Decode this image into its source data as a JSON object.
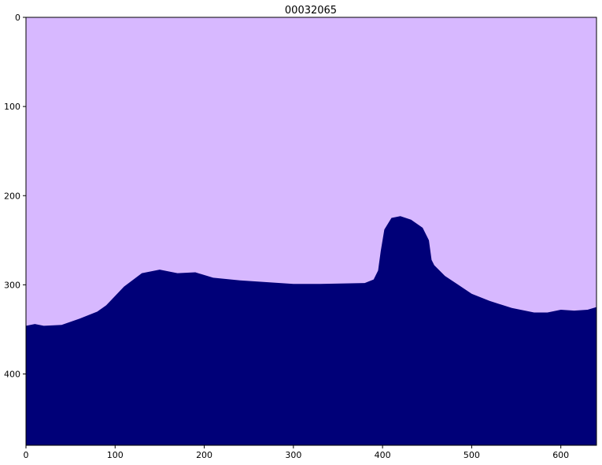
{
  "chart_data": {
    "type": "heatmap",
    "title": "00032065",
    "xlabel": "",
    "ylabel": "",
    "xlim": [
      0,
      640
    ],
    "ylim": [
      480,
      0
    ],
    "x_ticks": [
      0,
      100,
      200,
      300,
      400,
      500,
      600
    ],
    "y_ticks": [
      0,
      100,
      200,
      300,
      400
    ],
    "x_tick_labels": [
      "0",
      "100",
      "200",
      "300",
      "400",
      "500",
      "600"
    ],
    "y_tick_labels": [
      "0",
      "100",
      "200",
      "300",
      "400"
    ],
    "grid": false,
    "legend": "none",
    "classes": [
      {
        "color": "#d7b8ff"
      },
      {
        "color": "#000078"
      }
    ],
    "boundary": {
      "x": [
        0,
        10,
        20,
        40,
        60,
        80,
        90,
        110,
        130,
        150,
        170,
        190,
        210,
        240,
        270,
        300,
        330,
        380,
        390,
        395,
        398,
        402,
        410,
        420,
        432,
        445,
        452,
        455,
        458,
        470,
        485,
        500,
        520,
        545,
        570,
        585,
        600,
        615,
        630,
        640
      ],
      "y": [
        346,
        344,
        346,
        345,
        338,
        330,
        323,
        302,
        287,
        283,
        287,
        286,
        292,
        295,
        297,
        299,
        299,
        298,
        294,
        284,
        262,
        238,
        225,
        223,
        227,
        236,
        250,
        272,
        278,
        290,
        300,
        310,
        318,
        326,
        331,
        331,
        328,
        329,
        328,
        325
      ]
    }
  }
}
